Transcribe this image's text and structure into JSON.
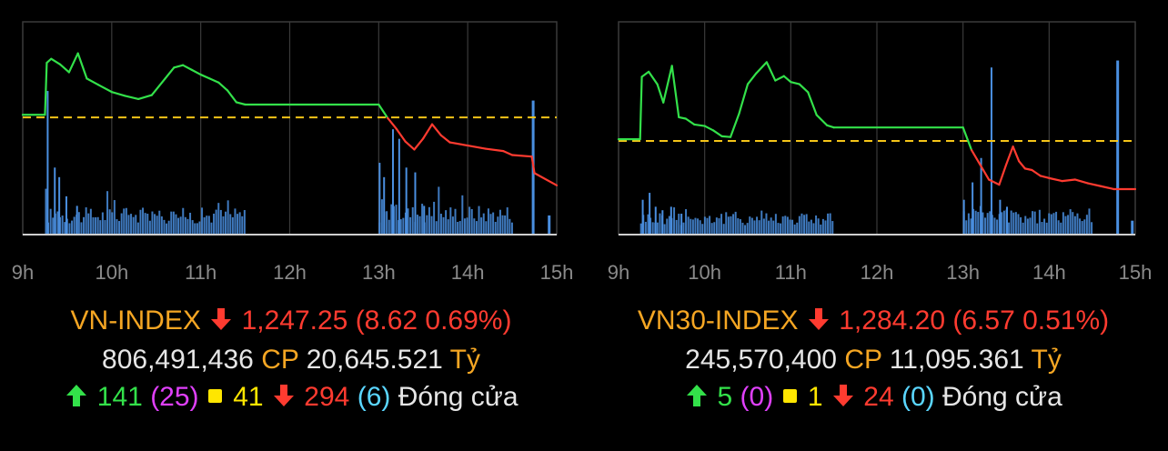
{
  "colors": {
    "up": "#33e14a",
    "down": "#ff3b30",
    "reference": "#f5c518",
    "volume": "#4a8fe0",
    "grid": "#3a3a3a",
    "axis": "#cfcfcf",
    "index_name": "#f5a623",
    "ceiling_count": "#e040fb",
    "floor_count": "#5ad6ff",
    "unchanged": "#ffe600"
  },
  "icons": {
    "down": "arrow-down-icon",
    "up": "arrow-up-icon",
    "unchanged": "yellow-square-icon"
  },
  "panels": [
    {
      "id": "vnindex",
      "name": "VN-INDEX",
      "value": "1,247.25",
      "change": "(8.62 0.69%)",
      "volume": "806,491,436",
      "volume_unit": "CP",
      "turnover": "20,645.521",
      "turnover_unit": "Tỷ",
      "advancers": "141",
      "ceiling": "(25)",
      "unchanged": "41",
      "decliners": "294",
      "floor": "(6)",
      "status": "Đóng cửa",
      "chart_data": {
        "type": "line",
        "x_ticks": [
          "9h",
          "10h",
          "11h",
          "12h",
          "13h",
          "14h",
          "15h"
        ],
        "xlim": [
          9,
          15
        ],
        "ylim": [
          1241,
          1268
        ],
        "reference": 1255.87,
        "series": [
          {
            "x": [
              9.0,
              9.25,
              9.27,
              9.32,
              9.42,
              9.52,
              9.62,
              9.72,
              9.85,
              10.0,
              10.15,
              10.3,
              10.45,
              10.6,
              10.7,
              10.8,
              10.9,
              11.0,
              11.1,
              11.2,
              11.3,
              11.4,
              11.5,
              13.0,
              13.1,
              13.2,
              13.3,
              13.4,
              13.5,
              13.6,
              13.7,
              13.8,
              14.0,
              14.2,
              14.4,
              14.5,
              14.72,
              14.75,
              15.0
            ],
            "y": [
              1256.2,
              1256.2,
              1262.8,
              1263.3,
              1262.6,
              1261.6,
              1264.0,
              1260.8,
              1260.0,
              1259.1,
              1258.6,
              1258.2,
              1258.7,
              1260.8,
              1262.2,
              1262.5,
              1261.9,
              1261.3,
              1260.8,
              1260.3,
              1259.3,
              1257.8,
              1257.5,
              1257.5,
              1255.8,
              1254.4,
              1252.8,
              1251.8,
              1253.2,
              1255.0,
              1253.6,
              1252.7,
              1252.3,
              1251.9,
              1251.6,
              1251.1,
              1250.9,
              1248.8,
              1247.25
            ]
          }
        ],
        "volume": {
          "sessions": [
            {
              "x_start": 9.25,
              "x_end": 11.5,
              "base": 3.8,
              "spikes": [
                [
                  9.27,
                  30
                ],
                [
                  9.35,
                  14
                ],
                [
                  9.4,
                  12
                ],
                [
                  9.48,
                  8
                ],
                [
                  9.6,
                  6
                ]
              ]
            },
            {
              "x_start": 13.0,
              "x_end": 14.5,
              "base": 4.2,
              "spikes": [
                [
                  13.0,
                  15
                ],
                [
                  13.05,
                  12
                ],
                [
                  13.15,
                  22
                ],
                [
                  13.22,
                  20
                ],
                [
                  13.3,
                  14
                ],
                [
                  13.4,
                  13
                ],
                [
                  13.5,
                  6
                ]
              ]
            }
          ],
          "closing_spikes": [
            [
              14.72,
              28
            ],
            [
              14.9,
              4
            ]
          ],
          "max": 40
        }
      }
    },
    {
      "id": "vn30",
      "name": "VN30-INDEX",
      "value": "1,284.20",
      "change": "(6.57 0.51%)",
      "volume": "245,570,400",
      "volume_unit": "CP",
      "turnover": "11,095.361",
      "turnover_unit": "Tỷ",
      "advancers": "5",
      "ceiling": "(0)",
      "unchanged": "1",
      "decliners": "24",
      "floor": "(0)",
      "status": "Đóng cửa",
      "chart_data": {
        "type": "line",
        "x_ticks": [
          "9h",
          "10h",
          "11h",
          "12h",
          "13h",
          "14h",
          "15h"
        ],
        "xlim": [
          9,
          15
        ],
        "ylim": [
          1278,
          1307
        ],
        "reference": 1290.77,
        "series": [
          {
            "x": [
              9.0,
              9.25,
              9.27,
              9.35,
              9.45,
              9.52,
              9.62,
              9.7,
              9.78,
              9.88,
              10.0,
              10.1,
              10.2,
              10.3,
              10.4,
              10.5,
              10.6,
              10.72,
              10.82,
              10.92,
              11.0,
              11.1,
              11.2,
              11.3,
              11.42,
              11.5,
              13.0,
              13.1,
              13.2,
              13.3,
              13.42,
              13.5,
              13.58,
              13.65,
              13.72,
              13.8,
              13.9,
              14.0,
              14.15,
              14.3,
              14.45,
              14.6,
              14.75,
              15.0
            ],
            "y": [
              1291.0,
              1291.0,
              1299.5,
              1300.2,
              1298.5,
              1296.0,
              1301.0,
              1294.0,
              1293.8,
              1293.0,
              1292.8,
              1292.2,
              1291.4,
              1291.3,
              1294.5,
              1298.5,
              1300.0,
              1301.5,
              1299.0,
              1299.6,
              1298.8,
              1298.5,
              1297.4,
              1294.3,
              1292.9,
              1292.6,
              1292.6,
              1289.5,
              1287.5,
              1285.5,
              1284.8,
              1287.5,
              1290.0,
              1288.0,
              1287.0,
              1286.8,
              1286.0,
              1285.7,
              1285.3,
              1285.5,
              1285.0,
              1284.6,
              1284.2,
              1284.2
            ]
          }
        ],
        "volume": {
          "sessions": [
            {
              "x_start": 9.25,
              "x_end": 11.5,
              "base": 4.5,
              "spikes": [
                [
                  9.27,
                  10
                ],
                [
                  9.35,
                  12
                ],
                [
                  9.42,
                  8
                ],
                [
                  9.5,
                  7
                ],
                [
                  9.6,
                  8
                ],
                [
                  9.72,
                  6
                ]
              ]
            },
            {
              "x_start": 13.0,
              "x_end": 14.5,
              "base": 5.0,
              "spikes": [
                [
                  13.0,
                  10
                ],
                [
                  13.1,
                  15
                ],
                [
                  13.2,
                  22
                ],
                [
                  13.32,
                  48
                ],
                [
                  13.42,
                  10
                ],
                [
                  13.5,
                  8
                ]
              ]
            }
          ],
          "closing_spikes": [
            [
              14.78,
              50
            ],
            [
              14.95,
              4
            ]
          ],
          "max": 55
        }
      }
    }
  ]
}
